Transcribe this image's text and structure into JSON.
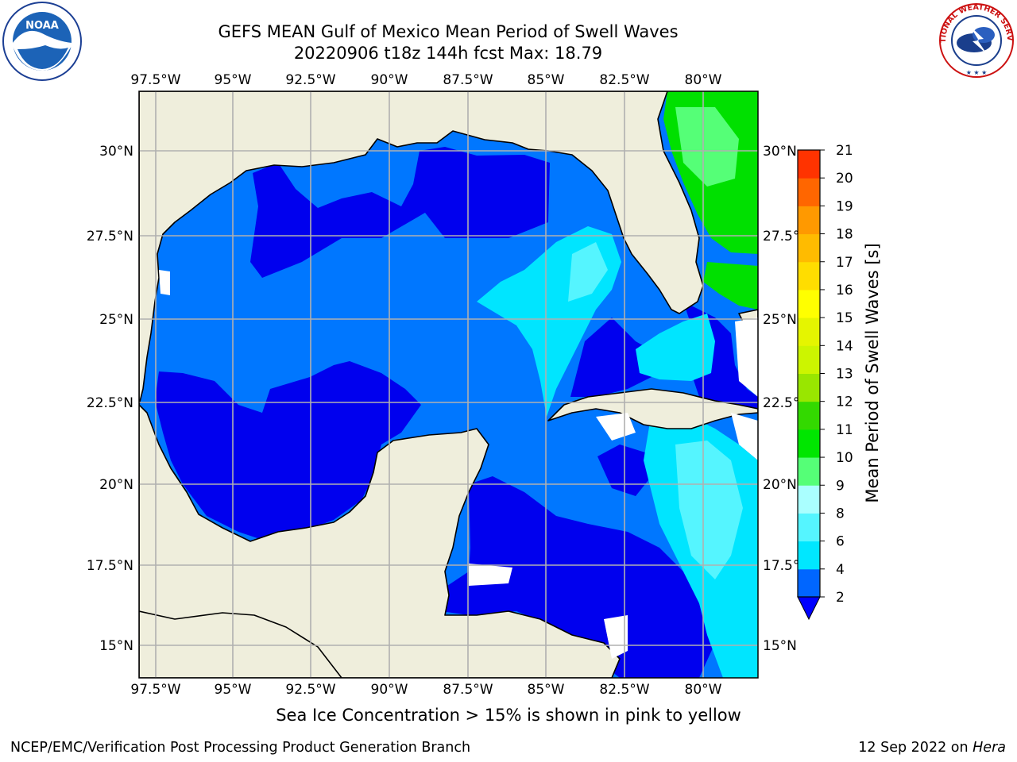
{
  "title": {
    "line1": "GEFS MEAN Gulf of Mexico Mean Period of Swell Waves",
    "line2": "20220906 t18z 144h fcst   Max: 18.79"
  },
  "map": {
    "lon_labels": [
      "97.5°W",
      "95°W",
      "92.5°W",
      "90°W",
      "87.5°W",
      "85°W",
      "82.5°W",
      "80°W"
    ],
    "lat_labels": [
      "30°N",
      "27.5°N",
      "25°N",
      "22.5°N",
      "20°N",
      "17.5°N",
      "15°N"
    ],
    "colors": {
      "land": "#efeedc",
      "coast": "#000000",
      "grid": "#b0b0b0",
      "missing": "#ffffff"
    }
  },
  "colorbar": {
    "title": "Mean Period of Swell Waves [s]",
    "tick_labels": [
      "2",
      "4",
      "6",
      "8",
      "9",
      "10",
      "11",
      "12",
      "13",
      "14",
      "15",
      "16",
      "17",
      "18",
      "19",
      "20",
      "21"
    ],
    "colors": [
      "#0066ff",
      "#00e7ff",
      "#55f5ff",
      "#aaffff",
      "#55ff77",
      "#00e600",
      "#33d900",
      "#99e600",
      "#ccf500",
      "#e5f500",
      "#ffff00",
      "#ffdd00",
      "#ffbb00",
      "#ff9900",
      "#ff6600",
      "#ff3300",
      "#ff0000"
    ],
    "under_color": "#0000ff"
  },
  "note": "Sea Ice Concentration > 15% is shown in pink to yellow",
  "footer": {
    "left": "NCEP/EMC/Verification Post Processing Product Generation Branch",
    "right_prefix": "12 Sep 2022 on ",
    "right_machine": "Hera"
  },
  "logos": {
    "noaa_text": "NOAA",
    "nws_text": "NATIONAL WEATHER SERVICE"
  }
}
